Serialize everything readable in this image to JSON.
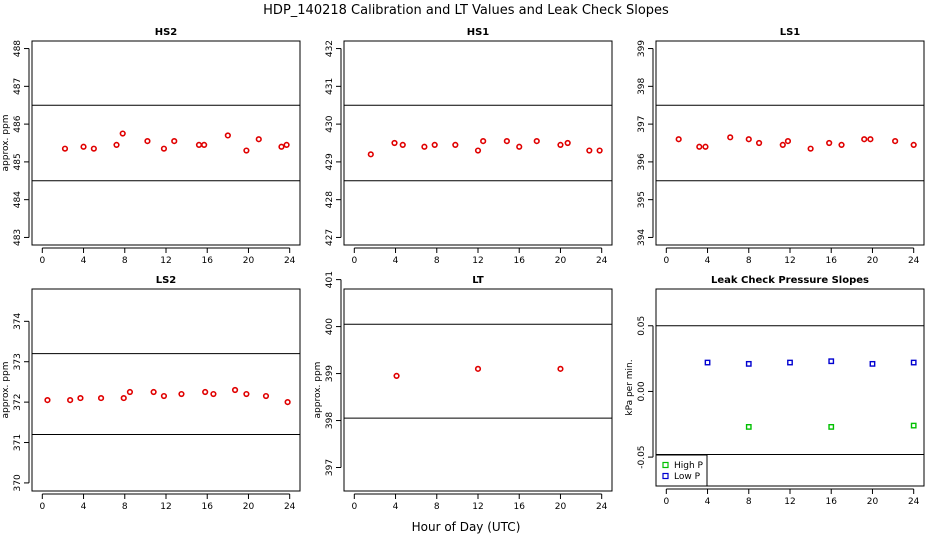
{
  "title": "HDP_140218  Calibration and LT Values and Leak Check Slopes",
  "x_axis_label": "Hour of Day (UTC)",
  "colors": {
    "calibration": "#e00000",
    "high_p": "#00c000",
    "low_p": "#0000d0"
  },
  "chart_data": [
    {
      "name": "HS2",
      "title": "HS2",
      "type": "scatter",
      "ylabel": "approx. ppm",
      "xlim": [
        -1,
        25
      ],
      "ylim": [
        482.8,
        488.2
      ],
      "xticks": [
        0,
        4,
        8,
        12,
        16,
        20,
        24
      ],
      "xtick_labels": [
        "0",
        "4",
        "8",
        "12",
        "16",
        "20",
        "24"
      ],
      "yticks": [
        483,
        484,
        485,
        486,
        487,
        488
      ],
      "ytick_labels": [
        "483",
        "484",
        "485",
        "486",
        "487",
        "488"
      ],
      "hlines": [
        484.5,
        486.5
      ],
      "series": [
        {
          "points": [
            [
              2.2,
              485.35
            ],
            [
              4.0,
              485.4
            ],
            [
              5.0,
              485.35
            ],
            [
              7.2,
              485.45
            ],
            [
              7.8,
              485.75
            ],
            [
              10.2,
              485.55
            ],
            [
              11.8,
              485.35
            ],
            [
              12.8,
              485.55
            ],
            [
              15.2,
              485.45
            ],
            [
              15.7,
              485.45
            ],
            [
              18.0,
              485.7
            ],
            [
              19.8,
              485.3
            ],
            [
              21.0,
              485.6
            ],
            [
              23.2,
              485.4
            ],
            [
              23.7,
              485.45
            ]
          ]
        }
      ]
    },
    {
      "name": "HS1",
      "title": "HS1",
      "type": "scatter",
      "ylabel": "",
      "xlim": [
        -1,
        25
      ],
      "ylim": [
        426.8,
        432.2
      ],
      "xticks": [
        0,
        4,
        8,
        12,
        16,
        20,
        24
      ],
      "xtick_labels": [
        "0",
        "4",
        "8",
        "12",
        "16",
        "20",
        "24"
      ],
      "yticks": [
        427,
        428,
        429,
        430,
        431,
        432
      ],
      "ytick_labels": [
        "427",
        "428",
        "429",
        "430",
        "431",
        "432"
      ],
      "hlines": [
        428.5,
        430.5
      ],
      "series": [
        {
          "points": [
            [
              1.6,
              429.2
            ],
            [
              3.9,
              429.5
            ],
            [
              4.7,
              429.45
            ],
            [
              6.8,
              429.4
            ],
            [
              7.8,
              429.45
            ],
            [
              9.8,
              429.45
            ],
            [
              12.0,
              429.3
            ],
            [
              12.5,
              429.55
            ],
            [
              14.8,
              429.55
            ],
            [
              16.0,
              429.4
            ],
            [
              17.7,
              429.55
            ],
            [
              20.0,
              429.45
            ],
            [
              20.7,
              429.5
            ],
            [
              22.8,
              429.3
            ],
            [
              23.8,
              429.3
            ]
          ]
        }
      ]
    },
    {
      "name": "LS1",
      "title": "LS1",
      "type": "scatter",
      "ylabel": "",
      "xlim": [
        -1,
        25
      ],
      "ylim": [
        393.8,
        399.2
      ],
      "xticks": [
        0,
        4,
        8,
        12,
        16,
        20,
        24
      ],
      "xtick_labels": [
        "0",
        "4",
        "8",
        "12",
        "16",
        "20",
        "24"
      ],
      "yticks": [
        394,
        395,
        396,
        397,
        398,
        399
      ],
      "ytick_labels": [
        "394",
        "395",
        "396",
        "397",
        "398",
        "399"
      ],
      "hlines": [
        395.5,
        397.5
      ],
      "series": [
        {
          "points": [
            [
              1.2,
              396.6
            ],
            [
              3.2,
              396.4
            ],
            [
              3.8,
              396.4
            ],
            [
              6.2,
              396.65
            ],
            [
              8.0,
              396.6
            ],
            [
              9.0,
              396.5
            ],
            [
              11.3,
              396.45
            ],
            [
              11.8,
              396.55
            ],
            [
              14.0,
              396.35
            ],
            [
              15.8,
              396.5
            ],
            [
              17.0,
              396.45
            ],
            [
              19.2,
              396.6
            ],
            [
              19.8,
              396.6
            ],
            [
              22.2,
              396.55
            ],
            [
              24.0,
              396.45
            ]
          ]
        }
      ]
    },
    {
      "name": "LS2",
      "title": "LS2",
      "type": "scatter",
      "ylabel": "approx. ppm",
      "xlim": [
        -1,
        25
      ],
      "ylim": [
        369.8,
        374.8
      ],
      "xticks": [
        0,
        4,
        8,
        12,
        16,
        20,
        24
      ],
      "xtick_labels": [
        "0",
        "4",
        "8",
        "12",
        "16",
        "20",
        "24"
      ],
      "yticks": [
        370,
        371,
        372,
        373,
        374
      ],
      "ytick_labels": [
        "370",
        "371",
        "372",
        "373",
        "374"
      ],
      "hlines": [
        371.2,
        373.2
      ],
      "series": [
        {
          "points": [
            [
              0.5,
              372.05
            ],
            [
              2.7,
              372.05
            ],
            [
              3.7,
              372.1
            ],
            [
              5.7,
              372.1
            ],
            [
              7.9,
              372.1
            ],
            [
              8.5,
              372.25
            ],
            [
              10.8,
              372.25
            ],
            [
              11.8,
              372.15
            ],
            [
              13.5,
              372.2
            ],
            [
              15.8,
              372.25
            ],
            [
              16.6,
              372.2
            ],
            [
              18.7,
              372.3
            ],
            [
              19.8,
              372.2
            ],
            [
              21.7,
              372.15
            ],
            [
              23.8,
              372.0
            ]
          ]
        }
      ]
    },
    {
      "name": "LT",
      "title": "LT",
      "type": "scatter",
      "ylabel": "approx. ppm",
      "xlim": [
        -1,
        25
      ],
      "ylim": [
        396.5,
        400.8
      ],
      "xticks": [
        0,
        4,
        8,
        12,
        16,
        20,
        24
      ],
      "xtick_labels": [
        "0",
        "4",
        "8",
        "12",
        "16",
        "20",
        "24"
      ],
      "yticks": [
        397,
        398,
        399,
        400,
        401
      ],
      "ytick_labels": [
        "397",
        "398",
        "399",
        "400",
        "401"
      ],
      "hlines": [
        398.05,
        400.05
      ],
      "series": [
        {
          "points": [
            [
              4.1,
              398.95
            ],
            [
              12.0,
              399.1
            ],
            [
              20.0,
              399.1
            ]
          ]
        }
      ]
    },
    {
      "name": "Leak Check Pressure Slopes",
      "title": "Leak Check Pressure Slopes",
      "type": "scatter",
      "ylabel": "kPa per min.",
      "xlim": [
        -1,
        25
      ],
      "ylim": [
        -0.072,
        0.078
      ],
      "xticks": [
        0,
        4,
        8,
        12,
        16,
        20,
        24
      ],
      "xtick_labels": [
        "0",
        "4",
        "8",
        "12",
        "16",
        "20",
        "24"
      ],
      "yticks": [
        -0.05,
        0.0,
        0.05
      ],
      "ytick_labels": [
        "-0.05",
        "0.00",
        "0.05"
      ],
      "hlines": [
        -0.048,
        0.05
      ],
      "legend": {
        "position": "bottom-left",
        "entries": [
          "High P",
          "Low P"
        ]
      },
      "series": [
        {
          "name": "High P",
          "points": [
            [
              8.0,
              -0.027
            ],
            [
              16.0,
              -0.027
            ],
            [
              24.0,
              -0.026
            ]
          ]
        },
        {
          "name": "Low P",
          "points": [
            [
              4.0,
              0.022
            ],
            [
              8.0,
              0.021
            ],
            [
              12.0,
              0.022
            ],
            [
              16.0,
              0.023
            ],
            [
              20.0,
              0.021
            ],
            [
              24.0,
              0.022
            ]
          ]
        }
      ]
    }
  ]
}
